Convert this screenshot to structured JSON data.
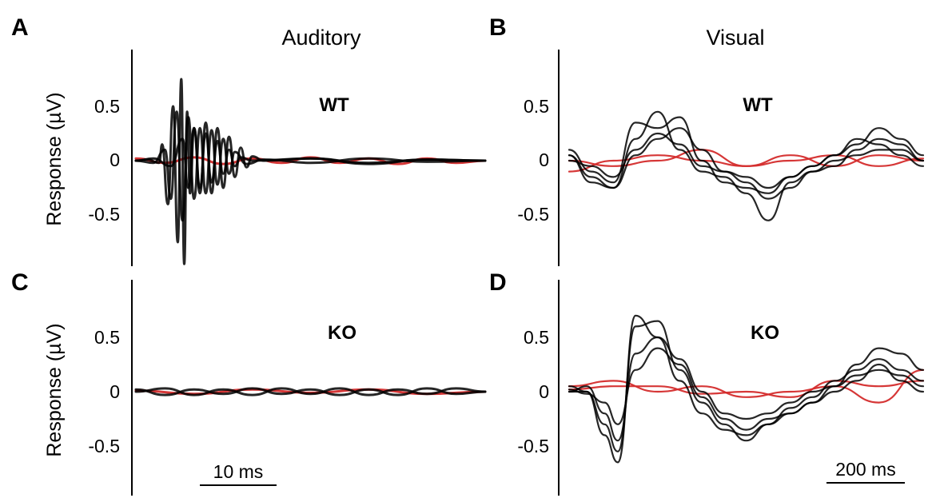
{
  "chart_data": [
    {
      "panel": "A",
      "type": "line",
      "title": "Auditory",
      "annotation": "WT",
      "ylabel": "Response (µV)",
      "yticks": [
        "0.5",
        "0",
        "-0.5"
      ],
      "ylim": [
        -0.95,
        1.05
      ],
      "scale_bar": "10 ms",
      "series_colors": {
        "stimulus": "#000000",
        "control": "#d42c2c"
      },
      "series": [
        {
          "color": "#000000",
          "kind": "stimulus",
          "x": [
            0,
            2,
            4,
            4.5,
            5.5,
            6.4,
            7.2,
            7.8,
            8.3,
            8.8,
            9.3,
            10,
            11,
            12,
            13,
            14,
            15,
            16,
            17,
            18,
            20,
            30,
            40,
            50,
            60
          ],
          "y": [
            0,
            0.01,
            -0.02,
            0.15,
            -0.4,
            0.5,
            -0.75,
            0.75,
            -0.95,
            0.45,
            -0.3,
            0.3,
            -0.25,
            0.25,
            -0.2,
            0.18,
            -0.12,
            0.1,
            -0.05,
            0.03,
            0,
            0.02,
            -0.02,
            0.01,
            0
          ]
        },
        {
          "color": "#000000",
          "kind": "stimulus",
          "x": [
            0,
            3,
            5,
            6,
            7,
            8,
            9,
            10,
            11,
            12,
            13,
            14,
            15,
            16,
            17,
            19,
            22,
            30,
            40,
            50,
            60
          ],
          "y": [
            0,
            -0.02,
            0.1,
            -0.35,
            0.45,
            -0.55,
            0.4,
            -0.35,
            0.3,
            -0.3,
            0.28,
            -0.22,
            0.2,
            -0.12,
            0.08,
            -0.03,
            0.01,
            -0.02,
            0.02,
            -0.01,
            0
          ]
        },
        {
          "color": "#000000",
          "kind": "stimulus",
          "x": [
            0,
            3,
            6,
            8,
            9,
            10,
            11,
            12,
            13,
            14,
            15,
            16,
            17,
            18,
            19,
            20,
            22,
            30,
            40,
            50,
            60
          ],
          "y": [
            0,
            0.02,
            -0.05,
            0.2,
            -0.25,
            0.3,
            -0.3,
            0.35,
            -0.3,
            0.3,
            -0.25,
            0.22,
            -0.15,
            0.12,
            -0.06,
            0.04,
            0,
            0.02,
            -0.03,
            0.01,
            0
          ]
        },
        {
          "color": "#d42c2c",
          "kind": "control",
          "x": [
            0,
            5,
            10,
            15,
            20,
            25,
            30,
            35,
            40,
            45,
            50,
            55,
            60
          ],
          "y": [
            0.02,
            -0.02,
            0.03,
            -0.03,
            0.02,
            -0.02,
            0.03,
            -0.02,
            0.02,
            -0.03,
            0.02,
            -0.02,
            0
          ]
        }
      ]
    },
    {
      "panel": "B",
      "type": "line",
      "title": "Visual",
      "annotation": "WT",
      "ylabel": "",
      "yticks": [
        "0.5",
        "0",
        "-0.5"
      ],
      "ylim": [
        -0.95,
        1.05
      ],
      "scale_bar": "",
      "series_colors": {
        "stimulus": "#000000",
        "control": "#d42c2c"
      },
      "series": [
        {
          "color": "#000000",
          "kind": "stimulus",
          "x": [
            0,
            50,
            100,
            150,
            200,
            250,
            300,
            350,
            400,
            450,
            500,
            550,
            600,
            650,
            700,
            750,
            800
          ],
          "y": [
            0.05,
            -0.15,
            -0.25,
            0.2,
            0.45,
            0.1,
            -0.1,
            -0.15,
            -0.3,
            -0.55,
            -0.2,
            -0.1,
            -0.05,
            0.1,
            0.2,
            0.15,
            0
          ]
        },
        {
          "color": "#000000",
          "kind": "stimulus",
          "x": [
            0,
            50,
            100,
            150,
            200,
            250,
            300,
            350,
            400,
            450,
            500,
            550,
            600,
            650,
            700,
            750,
            800
          ],
          "y": [
            0.1,
            -0.1,
            -0.2,
            0.35,
            0.3,
            0.4,
            0,
            -0.2,
            -0.25,
            -0.3,
            -0.15,
            -0.05,
            0.05,
            0.15,
            0.3,
            0.2,
            0.05
          ]
        },
        {
          "color": "#000000",
          "kind": "stimulus",
          "x": [
            0,
            50,
            100,
            150,
            200,
            250,
            300,
            350,
            400,
            450,
            500,
            550,
            600,
            650,
            700,
            750,
            800
          ],
          "y": [
            0,
            -0.05,
            -0.15,
            0.1,
            0.25,
            0.15,
            -0.05,
            -0.1,
            -0.2,
            -0.35,
            -0.25,
            -0.1,
            0,
            0.05,
            0.1,
            0.1,
            0
          ]
        },
        {
          "color": "#000000",
          "kind": "stimulus",
          "x": [
            0,
            50,
            100,
            150,
            200,
            250,
            300,
            350,
            400,
            450,
            500,
            550,
            600,
            650,
            700,
            750,
            800
          ],
          "y": [
            0.05,
            -0.2,
            -0.25,
            0.05,
            0.2,
            0.3,
            0.1,
            -0.1,
            -0.15,
            -0.25,
            -0.15,
            -0.05,
            0.05,
            0.2,
            0.15,
            0.05,
            -0.05
          ]
        },
        {
          "color": "#d42c2c",
          "kind": "control",
          "x": [
            0,
            100,
            200,
            300,
            400,
            500,
            600,
            700,
            800
          ],
          "y": [
            -0.1,
            0,
            0.05,
            0,
            -0.05,
            0.05,
            -0.05,
            0.05,
            0
          ]
        },
        {
          "color": "#d42c2c",
          "kind": "control",
          "x": [
            0,
            100,
            200,
            300,
            400,
            500,
            600,
            700,
            800
          ],
          "y": [
            0,
            -0.05,
            0,
            0.1,
            -0.05,
            0,
            0.05,
            -0.05,
            0.02
          ]
        }
      ]
    },
    {
      "panel": "C",
      "type": "line",
      "title": "",
      "annotation": "KO",
      "ylabel": "Response (µV)",
      "yticks": [
        "0.5",
        "0",
        "-0.5"
      ],
      "ylim": [
        -0.95,
        1.05
      ],
      "scale_bar": "10 ms",
      "series_colors": {
        "stimulus": "#000000",
        "control": "#d42c2c"
      },
      "series": [
        {
          "color": "#000000",
          "kind": "stimulus",
          "x": [
            0,
            5,
            10,
            15,
            20,
            25,
            30,
            35,
            40,
            45,
            50,
            55,
            60
          ],
          "y": [
            0,
            0.03,
            -0.03,
            0.02,
            -0.03,
            0.03,
            -0.02,
            0.03,
            -0.03,
            0.02,
            -0.02,
            0.03,
            0
          ]
        },
        {
          "color": "#000000",
          "kind": "stimulus",
          "x": [
            0,
            5,
            10,
            15,
            20,
            25,
            30,
            35,
            40,
            45,
            50,
            55,
            60
          ],
          "y": [
            0.02,
            -0.03,
            0.02,
            -0.02,
            0.03,
            -0.02,
            0.02,
            -0.03,
            0.02,
            -0.03,
            0.03,
            -0.02,
            0
          ]
        },
        {
          "color": "#d42c2c",
          "kind": "control",
          "x": [
            0,
            10,
            20,
            30,
            40,
            50,
            60
          ],
          "y": [
            0.01,
            -0.02,
            0.02,
            -0.01,
            0.02,
            -0.02,
            0
          ]
        }
      ]
    },
    {
      "panel": "D",
      "type": "line",
      "title": "",
      "annotation": "KO",
      "ylabel": "",
      "yticks": [
        "0.5",
        "0",
        "-0.5"
      ],
      "ylim": [
        -0.95,
        1.05
      ],
      "scale_bar": "200 ms",
      "series_colors": {
        "stimulus": "#000000",
        "control": "#d42c2c"
      },
      "series": [
        {
          "color": "#000000",
          "kind": "stimulus",
          "x": [
            0,
            40,
            80,
            110,
            150,
            200,
            250,
            300,
            350,
            400,
            450,
            500,
            550,
            600,
            650,
            700,
            750,
            800
          ],
          "y": [
            0,
            0,
            -0.4,
            -0.65,
            0.7,
            0.5,
            0.1,
            -0.2,
            -0.35,
            -0.4,
            -0.3,
            -0.2,
            -0.1,
            0.05,
            0.25,
            0.4,
            0.35,
            0.2
          ]
        },
        {
          "color": "#000000",
          "kind": "stimulus",
          "x": [
            0,
            40,
            80,
            110,
            150,
            200,
            250,
            300,
            350,
            400,
            450,
            500,
            550,
            600,
            650,
            700,
            750,
            800
          ],
          "y": [
            0.05,
            0,
            -0.3,
            -0.55,
            0.6,
            0.65,
            0.2,
            -0.1,
            -0.3,
            -0.45,
            -0.3,
            -0.15,
            -0.05,
            0.1,
            0.2,
            0.3,
            0.2,
            0.1
          ]
        },
        {
          "color": "#000000",
          "kind": "stimulus",
          "x": [
            0,
            40,
            80,
            110,
            150,
            200,
            250,
            300,
            350,
            400,
            450,
            500,
            550,
            600,
            650,
            700,
            750,
            800
          ],
          "y": [
            0,
            0.05,
            -0.2,
            -0.45,
            0.35,
            0.5,
            0.3,
            0,
            -0.2,
            -0.25,
            -0.2,
            -0.1,
            0,
            0.05,
            0.15,
            0.2,
            0.15,
            0.05
          ]
        },
        {
          "color": "#000000",
          "kind": "stimulus",
          "x": [
            0,
            40,
            80,
            110,
            150,
            200,
            250,
            300,
            350,
            400,
            450,
            500,
            550,
            600,
            650,
            700,
            750,
            800
          ],
          "y": [
            0.02,
            -0.02,
            -0.1,
            -0.3,
            0.2,
            0.4,
            0.25,
            -0.05,
            -0.25,
            -0.35,
            -0.25,
            -0.2,
            -0.1,
            0,
            0.1,
            0.25,
            0.1,
            0
          ]
        },
        {
          "color": "#d42c2c",
          "kind": "control",
          "x": [
            0,
            100,
            200,
            300,
            400,
            500,
            600,
            700,
            800
          ],
          "y": [
            0.05,
            0.1,
            0,
            0.05,
            -0.05,
            0,
            0.05,
            -0.1,
            0.2
          ]
        },
        {
          "color": "#d42c2c",
          "kind": "control",
          "x": [
            0,
            100,
            200,
            300,
            400,
            500,
            600,
            700,
            800
          ],
          "y": [
            0.02,
            0.05,
            0.05,
            -0.02,
            0,
            -0.05,
            0.1,
            0.05,
            0.1
          ]
        }
      ]
    }
  ]
}
